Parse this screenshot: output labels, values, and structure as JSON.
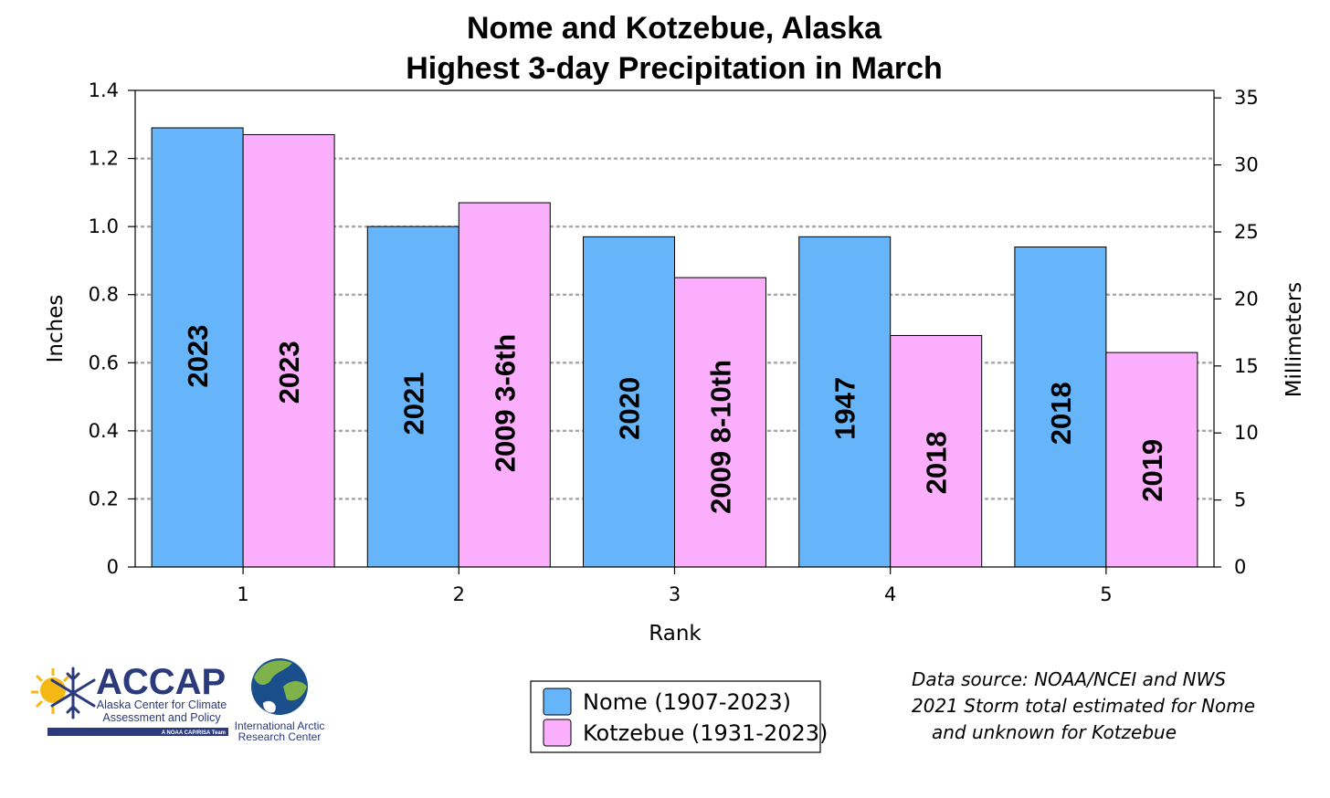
{
  "chart_data": {
    "type": "bar",
    "title_line1": "Nome and Kotzebue, Alaska",
    "title_line2": "Highest 3-day Precipitation in March",
    "xlabel": "Rank",
    "ylabel_left": "Inches",
    "ylabel_right": "Millimeters",
    "categories": [
      "1",
      "2",
      "3",
      "4",
      "5"
    ],
    "ylim_left": [
      0,
      1.4
    ],
    "yticks_left": [
      "0",
      "0.2",
      "0.4",
      "0.6",
      "0.8",
      "1.0",
      "1.2",
      "1.4"
    ],
    "ylim_right": [
      0,
      35.56
    ],
    "yticks_right": [
      "0",
      "5",
      "10",
      "15",
      "20",
      "25",
      "30",
      "35"
    ],
    "grid": "dotted horizontal",
    "series": [
      {
        "name": "Nome (1907-2023)",
        "color": "#66b5fb",
        "values": [
          1.29,
          1.0,
          0.97,
          0.97,
          0.94
        ],
        "labels": [
          "2023",
          "2021",
          "2020",
          "1947",
          "2018"
        ]
      },
      {
        "name": "Kotzebue (1931-2023)",
        "color": "#fbaefc",
        "values": [
          1.27,
          1.07,
          0.85,
          0.68,
          0.63
        ],
        "labels": [
          "2023",
          "2009 3-6th",
          "2009 8-10th",
          "2018",
          "2019"
        ]
      }
    ],
    "legend_position": "bottom-center"
  },
  "notes": {
    "line1": "Data source: NOAA/NCEI and NWS",
    "line2": "2021 Storm total estimated for Nome",
    "line3": "and unknown for Kotzebue"
  },
  "logos": {
    "accap_big": "ACCAP",
    "accap_line1": "Alaska Center for Climate",
    "accap_line2": "Assessment and Policy",
    "accap_tag": "A NOAA CAP/RISA Team",
    "iarc_line1": "International Arctic",
    "iarc_line2": "Research Center",
    "sun_icon": "sun-icon",
    "snowflake_icon": "snowflake-icon",
    "globe_icon": "globe-icon"
  }
}
